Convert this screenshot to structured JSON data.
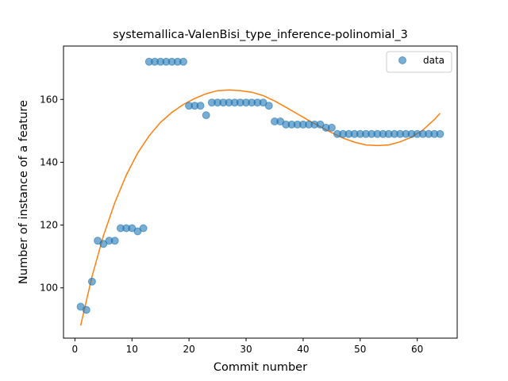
{
  "chart_data": {
    "type": "scatter",
    "title": "systemallica-ValenBisi_type_inference-polinomial_3",
    "xlabel": "Commit number",
    "ylabel": "Number of instance of a feature",
    "xlim": [
      -2,
      67
    ],
    "ylim": [
      84,
      177
    ],
    "xticks": [
      0,
      10,
      20,
      30,
      40,
      50,
      60
    ],
    "yticks": [
      100,
      120,
      140,
      160
    ],
    "grid": false,
    "legend_position": "top-right",
    "series": [
      {
        "name": "data",
        "kind": "scatter",
        "color": "#1f77b4",
        "x": [
          1,
          2,
          3,
          4,
          5,
          6,
          7,
          8,
          9,
          10,
          11,
          12,
          13,
          14,
          15,
          16,
          17,
          18,
          19,
          20,
          21,
          22,
          23,
          24,
          25,
          26,
          27,
          28,
          29,
          30,
          31,
          32,
          33,
          34,
          35,
          36,
          37,
          38,
          39,
          40,
          41,
          42,
          43,
          44,
          45,
          46,
          47,
          48,
          49,
          50,
          51,
          52,
          53,
          54,
          55,
          56,
          57,
          58,
          59,
          60,
          61,
          62,
          63,
          64
        ],
        "y": [
          94,
          93,
          102,
          115,
          114,
          115,
          115,
          119,
          119,
          119,
          118,
          119,
          172,
          172,
          172,
          172,
          172,
          172,
          172,
          158,
          158,
          158,
          155,
          159,
          159,
          159,
          159,
          159,
          159,
          159,
          159,
          159,
          159,
          158,
          153,
          153,
          152,
          152,
          152,
          152,
          152,
          152,
          152,
          151,
          151,
          149,
          149,
          149,
          149,
          149,
          149,
          149,
          149,
          149,
          149,
          149,
          149,
          149,
          149,
          149,
          149,
          149,
          149,
          149
        ]
      },
      {
        "kind": "line",
        "color": "#ff7f0e",
        "x": [
          1,
          3,
          5,
          7,
          9,
          11,
          13,
          15,
          17,
          19,
          21,
          23,
          25,
          27,
          29,
          31,
          33,
          35,
          37,
          39,
          41,
          43,
          45,
          47,
          49,
          51,
          53,
          55,
          57,
          59,
          61,
          63,
          64
        ],
        "y": [
          88,
          103.6,
          116.6,
          127.2,
          135.9,
          142.9,
          148.4,
          152.7,
          155.9,
          158.4,
          160.3,
          161.8,
          162.8,
          163.0,
          162.8,
          162.3,
          161.2,
          159.5,
          157.5,
          155.4,
          153.3,
          151.3,
          149.4,
          147.7,
          146.4,
          145.5,
          145.3,
          145.5,
          146.5,
          148.0,
          150.3,
          153.6,
          155.6
        ]
      }
    ]
  }
}
